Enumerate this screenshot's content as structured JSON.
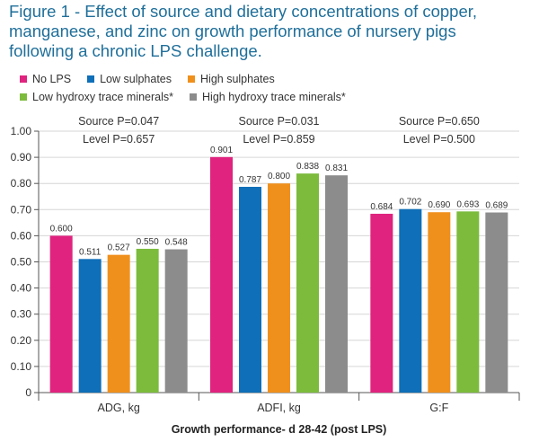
{
  "title": {
    "line1": "Figure 1 - Effect of source and dietary concentrations of copper,",
    "line2": "manganese, and zinc on growth performance of nursery pigs",
    "line3": "following a chronic LPS challenge."
  },
  "colors": {
    "title": "#1f6f9a",
    "No LPS": "#e0237e",
    "Low sulphates": "#0f6fb8",
    "High sulphates": "#f0901c",
    "Low hydroxy trace minerals*": "#7cbb3c",
    "High hydroxy trace minerals*": "#8c8c8c"
  },
  "chart_data": {
    "type": "bar",
    "xlabel": "Growth performance- d 28-42 (post LPS)",
    "ylabel": "",
    "ylim": [
      0,
      1.0
    ],
    "yticks": [
      "0",
      "0.10",
      "0.20",
      "0.30",
      "0.40",
      "0.50",
      "0.60",
      "0.70",
      "0.80",
      "0.90",
      "1.00"
    ],
    "grid": true,
    "legend_position": "top",
    "categories": [
      "ADG, kg",
      "ADFI, kg",
      "G:F"
    ],
    "series": [
      {
        "name": "No LPS",
        "values": [
          0.6,
          0.901,
          0.684
        ],
        "labels": [
          "0.600",
          "0.901",
          "0.684"
        ]
      },
      {
        "name": "Low sulphates",
        "values": [
          0.511,
          0.787,
          0.702
        ],
        "labels": [
          "0.511",
          "0.787",
          "0.702"
        ]
      },
      {
        "name": "High sulphates",
        "values": [
          0.527,
          0.8,
          0.69
        ],
        "labels": [
          "0.527",
          "0.800",
          "0.690"
        ]
      },
      {
        "name": "Low hydroxy trace minerals*",
        "values": [
          0.55,
          0.838,
          0.693
        ],
        "labels": [
          "0.550",
          "0.838",
          "0.693"
        ]
      },
      {
        "name": "High hydroxy trace minerals*",
        "values": [
          0.548,
          0.831,
          0.689
        ],
        "labels": [
          "0.548",
          "0.831",
          "0.689"
        ]
      }
    ],
    "annotations": [
      {
        "source": "Source P=0.047",
        "level": "Level P=0.657"
      },
      {
        "source": "Source P=0.031",
        "level": "Level P=0.859"
      },
      {
        "source": "Source P=0.650",
        "level": "Level P=0.500"
      }
    ]
  }
}
